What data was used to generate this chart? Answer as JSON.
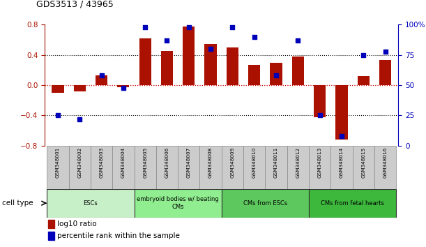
{
  "title": "GDS3513 / 43965",
  "samples": [
    "GSM348001",
    "GSM348002",
    "GSM348003",
    "GSM348004",
    "GSM348005",
    "GSM348006",
    "GSM348007",
    "GSM348008",
    "GSM348009",
    "GSM348010",
    "GSM348011",
    "GSM348012",
    "GSM348013",
    "GSM348014",
    "GSM348015",
    "GSM348016"
  ],
  "log10_ratio": [
    -0.1,
    -0.08,
    0.13,
    -0.03,
    0.62,
    0.45,
    0.78,
    0.55,
    0.5,
    0.27,
    0.3,
    0.38,
    -0.42,
    -0.72,
    0.12,
    0.33
  ],
  "percentile_rank": [
    25,
    22,
    58,
    48,
    98,
    87,
    98,
    80,
    98,
    90,
    58,
    87,
    25,
    8,
    75,
    78
  ],
  "cell_types": [
    {
      "label": "ESCs",
      "start": 0,
      "end": 3,
      "color": "#C8F0C8"
    },
    {
      "label": "embryoid bodies w/ beating\nCMs",
      "start": 4,
      "end": 7,
      "color": "#90EE90"
    },
    {
      "label": "CMs from ESCs",
      "start": 8,
      "end": 11,
      "color": "#5DC85D"
    },
    {
      "label": "CMs from fetal hearts",
      "start": 12,
      "end": 15,
      "color": "#3DB83D"
    }
  ],
  "bar_color": "#AA1100",
  "dot_color": "#0000BB",
  "ylim_left": [
    -0.8,
    0.8
  ],
  "ylim_right": [
    0,
    100
  ],
  "yticks_left": [
    -0.8,
    -0.4,
    0.0,
    0.4,
    0.8
  ],
  "yticks_right": [
    0,
    25,
    50,
    75,
    100
  ],
  "background_color": "#ffffff",
  "hline_color": "black",
  "zero_line_color": "#CC0000"
}
